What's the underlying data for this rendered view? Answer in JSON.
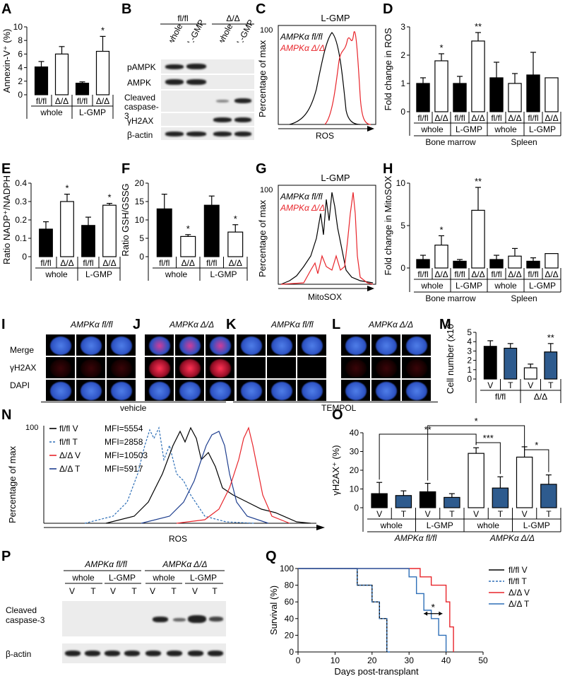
{
  "panel_letters": [
    "A",
    "B",
    "C",
    "D",
    "E",
    "F",
    "G",
    "H",
    "I",
    "J",
    "K",
    "L",
    "M",
    "N",
    "O",
    "P",
    "Q"
  ],
  "panelB": {
    "groups": [
      "fl/fl",
      "Δ/Δ"
    ],
    "columns": [
      "whole",
      "L-GMP",
      "whole",
      "L-GMP"
    ],
    "rows": [
      "pAMPK",
      "AMPK",
      "Cleaved caspase-3",
      "γH2AX",
      "β-actin"
    ]
  },
  "panelC": {
    "title": "L-GMP",
    "ylabel": "Percentage of max",
    "xlabel": "ROS",
    "ymax": "100",
    "legend": [
      "AMPKα fl/fl",
      "AMPKα Δ/Δ"
    ],
    "colors": [
      "#000000",
      "#e8252b"
    ]
  },
  "panelG": {
    "title": "L-GMP",
    "ylabel": "Percentage of max",
    "xlabel": "MitoSOX",
    "ymax": "100",
    "legend": [
      "AMPKα fl/fl",
      "AMPKα Δ/Δ"
    ]
  },
  "panelI": {
    "title": "AMPKα fl/fl",
    "rows": [
      "Merge",
      "γH2AX",
      "DAPI"
    ]
  },
  "panelJ": {
    "title": "AMPKα Δ/Δ"
  },
  "panelK": {
    "title": "AMPKα fl/fl"
  },
  "panelL": {
    "title": "AMPKα Δ/Δ"
  },
  "vehicle_label": "vehicle",
  "tempol_label": "TEMPOL",
  "panelN": {
    "ylabel": "Percentage of max",
    "xlabel": "ROS",
    "ymax": "100",
    "legend": [
      {
        "name": "fl/fl V",
        "mfi": "MFI=5554",
        "color": "#000000"
      },
      {
        "name": "fl/fl T",
        "mfi": "MFI=2858",
        "color": "#2e6fb7"
      },
      {
        "name": "Δ/Δ V",
        "mfi": "MFI=10503",
        "color": "#e8252b"
      },
      {
        "name": "Δ/Δ T",
        "mfi": "MFI=5917",
        "color": "#1f3f8f"
      }
    ]
  },
  "panelP": {
    "groups": [
      "AMPKα fl/fl",
      "AMPKα Δ/Δ"
    ],
    "subgroups": [
      "whole",
      "L-GMP",
      "whole",
      "L-GMP"
    ],
    "lanes": [
      "V",
      "T",
      "V",
      "T",
      "V",
      "T",
      "V",
      "T"
    ],
    "rows": [
      "Cleaved caspase-3",
      "β-actin"
    ]
  },
  "chart_data": [
    {
      "id": "A",
      "type": "bar",
      "ylabel": "Annexin-V⁺ (%)",
      "ylim": [
        0,
        10
      ],
      "yticks": [
        "0",
        "2",
        "4",
        "6",
        "8",
        "10"
      ],
      "categories": [
        "fl/fl",
        "Δ/Δ",
        "fl/fl",
        "Δ/Δ"
      ],
      "groups": [
        "whole",
        "L-GMP"
      ],
      "values": [
        4.1,
        6.0,
        1.7,
        6.4
      ],
      "errors": [
        0.8,
        1.1,
        0.2,
        2.2
      ],
      "fill": [
        "#000",
        "#fff",
        "#000",
        "#fff"
      ],
      "stars": [
        "",
        "",
        "",
        "*"
      ]
    },
    {
      "id": "D",
      "type": "bar",
      "ylabel": "Fold change in ROS",
      "ylim": [
        0,
        3
      ],
      "yticks": [
        "0",
        "1",
        "2",
        "3"
      ],
      "categories": [
        "fl/fl",
        "Δ/Δ",
        "fl/fl",
        "Δ/Δ",
        "fl/fl",
        "Δ/Δ",
        "fl/fl",
        "Δ/Δ"
      ],
      "groups": [
        "whole",
        "L-GMP",
        "whole",
        "L-GMP"
      ],
      "supergroups": [
        "Bone marrow",
        "Spleen"
      ],
      "values": [
        1.0,
        1.8,
        1.0,
        2.5,
        1.2,
        1.0,
        1.3,
        1.2
      ],
      "errors": [
        0.2,
        0.25,
        0.25,
        0.3,
        0.55,
        0.35,
        0.8,
        0.0
      ],
      "fill": [
        "#000",
        "#fff",
        "#000",
        "#fff",
        "#000",
        "#fff",
        "#000",
        "#fff"
      ],
      "stars": [
        "",
        "*",
        "",
        "**",
        "",
        "",
        "",
        ""
      ]
    },
    {
      "id": "E",
      "type": "bar",
      "ylabel": "Ratio NADP⁺/NADPH",
      "ylim": [
        0,
        0.4
      ],
      "yticks": [
        "0",
        "0.1",
        "0.2",
        "0.3",
        "0.4"
      ],
      "categories": [
        "fl/fl",
        "Δ/Δ",
        "fl/fl",
        "Δ/Δ"
      ],
      "groups": [
        "whole",
        "L-GMP"
      ],
      "values": [
        0.15,
        0.3,
        0.17,
        0.28
      ],
      "errors": [
        0.04,
        0.04,
        0.045,
        0.01
      ],
      "fill": [
        "#000",
        "#fff",
        "#000",
        "#fff"
      ],
      "stars": [
        "",
        "*",
        "",
        "*"
      ]
    },
    {
      "id": "F",
      "type": "bar",
      "ylabel": "Ratio GSH/GSSG",
      "ylim": [
        0,
        20
      ],
      "yticks": [
        "0",
        "5",
        "10",
        "15",
        "20"
      ],
      "categories": [
        "fl/fl",
        "Δ/Δ",
        "fl/fl",
        "Δ/Δ"
      ],
      "groups": [
        "whole",
        "L-GMP"
      ],
      "values": [
        13,
        5.5,
        14,
        6.7
      ],
      "errors": [
        4,
        0.5,
        2.5,
        2
      ],
      "fill": [
        "#000",
        "#fff",
        "#000",
        "#fff"
      ],
      "stars": [
        "",
        "*",
        "",
        "*"
      ]
    },
    {
      "id": "H",
      "type": "bar",
      "ylabel": "Fold change in MitoSOX",
      "ylim": [
        0,
        10
      ],
      "yticks": [
        "0",
        "5",
        "10"
      ],
      "categories": [
        "fl/fl",
        "Δ/Δ",
        "fl/fl",
        "Δ/Δ",
        "fl/fl",
        "Δ/Δ",
        "fl/fl",
        "Δ/Δ"
      ],
      "groups": [
        "whole",
        "L-GMP",
        "whole",
        "L-GMP"
      ],
      "supergroups": [
        "Bone marrow",
        "Spleen"
      ],
      "values": [
        1.0,
        2.7,
        0.8,
        6.8,
        1.0,
        1.4,
        0.8,
        1.7
      ],
      "errors": [
        0.5,
        1.1,
        0.2,
        2.7,
        0.5,
        0.9,
        0.4,
        0
      ],
      "fill": [
        "#000",
        "#fff",
        "#000",
        "#fff",
        "#000",
        "#fff",
        "#000",
        "#fff"
      ],
      "stars": [
        "",
        "*",
        "",
        "**",
        "",
        "",
        "",
        ""
      ]
    },
    {
      "id": "M",
      "type": "bar",
      "ylabel": "Cell number (x10⁷)",
      "ylim": [
        0,
        5
      ],
      "yticks": [
        "0",
        "1",
        "2",
        "3",
        "4",
        "5"
      ],
      "categories": [
        "V",
        "T",
        "V",
        "T"
      ],
      "groups": [
        "fl/fl",
        "Δ/Δ"
      ],
      "values": [
        3.5,
        3.3,
        1.2,
        2.9
      ],
      "errors": [
        0.6,
        0.5,
        0.4,
        0.9
      ],
      "fill": [
        "#000",
        "#2e5b8e",
        "#fff",
        "#2e5b8e"
      ],
      "stars": [
        "",
        "",
        "",
        "**"
      ]
    },
    {
      "id": "O",
      "type": "bar",
      "ylabel": "γH2AX⁺ (%)",
      "ylim": [
        0,
        40
      ],
      "yticks": [
        "0",
        "10",
        "20",
        "30",
        "40"
      ],
      "categories": [
        "V",
        "T",
        "V",
        "T",
        "V",
        "T",
        "V",
        "T"
      ],
      "groups": [
        "whole",
        "L-GMP",
        "whole",
        "L-GMP"
      ],
      "supergroups": [
        "AMPKα fl/fl",
        "AMPKα Δ/Δ"
      ],
      "values": [
        7.5,
        6.5,
        8.5,
        5.5,
        29,
        10.5,
        27,
        12.5
      ],
      "errors": [
        6,
        2.5,
        4.5,
        2,
        3,
        6,
        5.5,
        5
      ],
      "fill": [
        "#000",
        "#2e5b8e",
        "#000",
        "#2e5b8e",
        "#fff",
        "#2e5b8e",
        "#fff",
        "#2e5b8e"
      ],
      "brackets": [
        {
          "from": 0,
          "to": 4,
          "label": "**"
        },
        {
          "from": 2,
          "to": 6,
          "label": "*"
        },
        {
          "from": 4,
          "to": 5,
          "label": "***"
        },
        {
          "from": 6,
          "to": 7,
          "label": "*"
        }
      ]
    },
    {
      "id": "Q",
      "type": "line",
      "ylabel": "Survival (%)",
      "xlabel": "Days post-transplant",
      "xlim": [
        0,
        50
      ],
      "ylim": [
        0,
        100
      ],
      "xticks": [
        "0",
        "10",
        "20",
        "30",
        "40",
        "50"
      ],
      "yticks": [
        "0",
        "20",
        "40",
        "60",
        "80",
        "100"
      ],
      "series": [
        {
          "name": "fl/fl V",
          "color": "#000000",
          "dash": "",
          "x": [
            0,
            16,
            16,
            20,
            20,
            22,
            22,
            24,
            24
          ],
          "y": [
            100,
            100,
            80,
            80,
            60,
            60,
            40,
            40,
            0
          ]
        },
        {
          "name": "fl/fl T",
          "color": "#2e6fb7",
          "dash": "3,2",
          "x": [
            0,
            16,
            16,
            20,
            20,
            22,
            22,
            24,
            24,
            25
          ],
          "y": [
            100,
            100,
            80,
            80,
            60,
            60,
            40,
            40,
            0,
            0
          ]
        },
        {
          "name": "Δ/Δ V",
          "color": "#e8252b",
          "dash": "",
          "x": [
            0,
            33,
            33,
            36,
            36,
            40,
            40,
            41,
            41,
            42,
            42
          ],
          "y": [
            100,
            100,
            90,
            90,
            80,
            80,
            60,
            60,
            30,
            30,
            0
          ]
        },
        {
          "name": "Δ/Δ T",
          "color": "#2e6fb7",
          "dash": "",
          "x": [
            0,
            30,
            30,
            32,
            32,
            34,
            34,
            36,
            36,
            38,
            38,
            40,
            40
          ],
          "y": [
            100,
            100,
            90,
            90,
            70,
            70,
            50,
            50,
            40,
            40,
            20,
            20,
            0
          ]
        }
      ],
      "annotation": "*"
    }
  ]
}
